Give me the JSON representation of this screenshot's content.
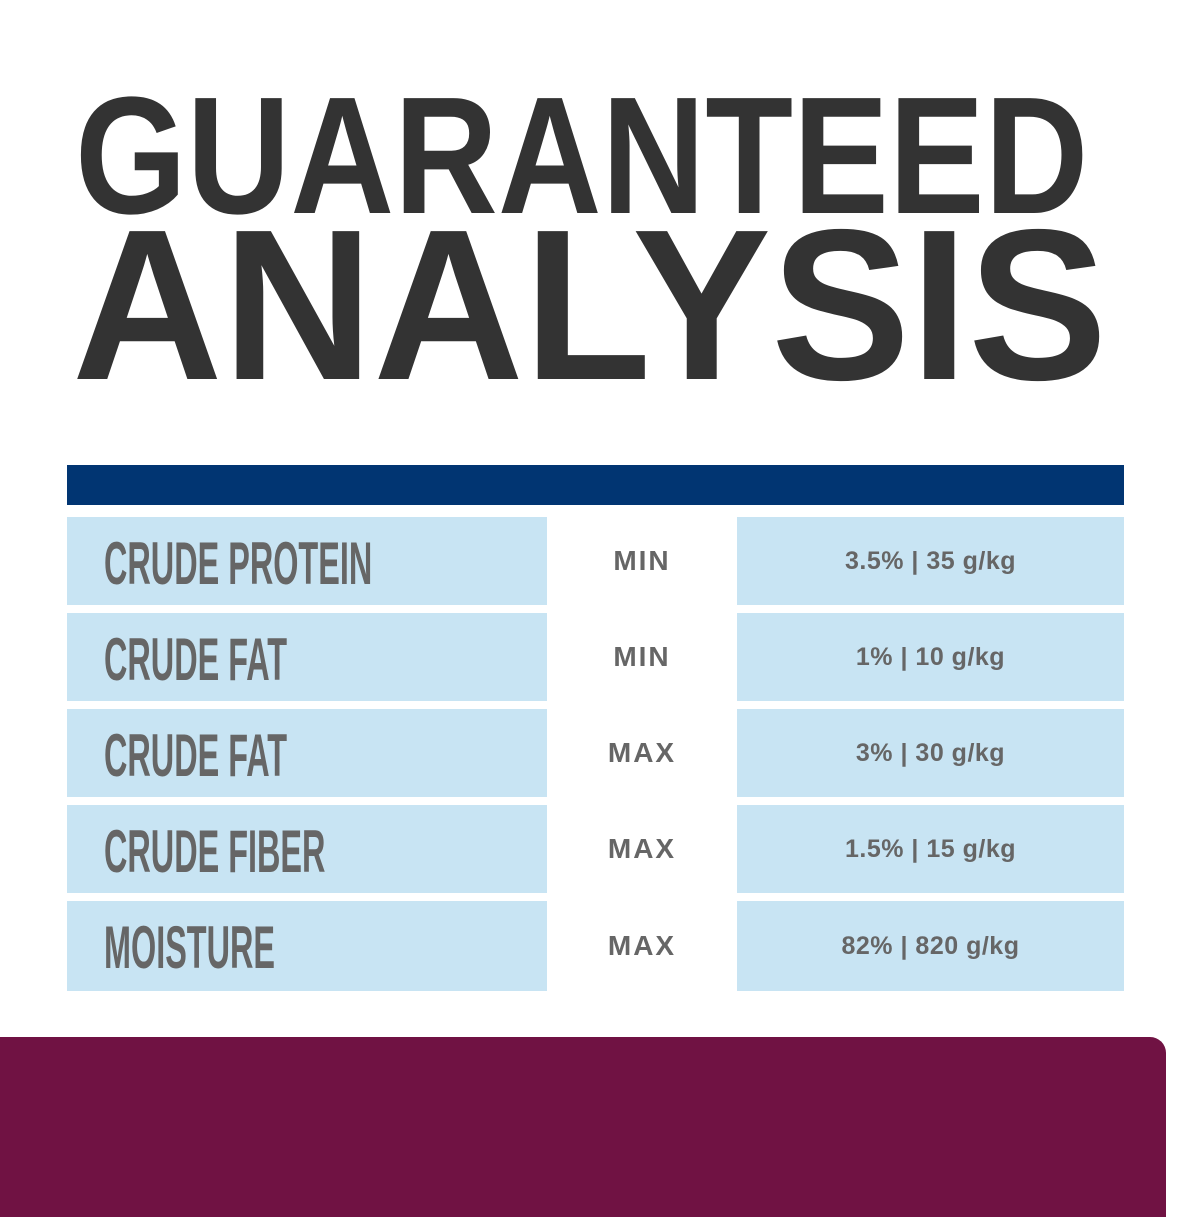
{
  "title": {
    "line1": "GUARANTEED",
    "line2": "ANALYSIS"
  },
  "colors": {
    "title": "#333333",
    "header_bar": "#013572",
    "cell_bg": "#c8e4f3",
    "text": "#666666",
    "panel": "#701243"
  },
  "rows": [
    {
      "nutrient": "CRUDE PROTEIN",
      "qualifier": "MIN",
      "value": "3.5% | 35 g/kg"
    },
    {
      "nutrient": "CRUDE FAT",
      "qualifier": "MIN",
      "value": "1% | 10 g/kg"
    },
    {
      "nutrient": "CRUDE FAT",
      "qualifier": "MAX",
      "value": "3% | 30 g/kg"
    },
    {
      "nutrient": "CRUDE FIBER",
      "qualifier": "MAX",
      "value": "1.5% | 15 g/kg"
    },
    {
      "nutrient": "MOISTURE",
      "qualifier": "MAX",
      "value": "82% | 820 g/kg"
    }
  ]
}
